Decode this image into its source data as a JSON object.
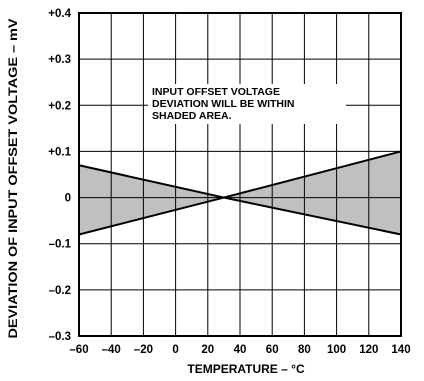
{
  "chart_data": {
    "type": "line",
    "title": "",
    "xlabel": "TEMPERATURE – °C",
    "ylabel": "DEVIATION OF INPUT OFFSET VOLTAGE – mV",
    "xlim": [
      -60,
      140
    ],
    "ylim": [
      -0.3,
      0.4
    ],
    "x_ticks": [
      -60,
      -40,
      -20,
      0,
      20,
      40,
      60,
      80,
      100,
      120,
      140
    ],
    "y_ticks": [
      0.4,
      0.3,
      0.2,
      0.1,
      0,
      -0.1,
      -0.2,
      -0.3
    ],
    "x_tick_labels": [
      "–60",
      "–40",
      "–20",
      "0",
      "20",
      "40",
      "60",
      "80",
      "100",
      "120",
      "140"
    ],
    "y_tick_labels": [
      "+0.4",
      "+0.3",
      "+0.2",
      "+0.1",
      "0",
      "–0.1",
      "–0.2",
      "–0.3"
    ],
    "grid": true,
    "series": [
      {
        "x": [
          -60,
          30,
          140
        ],
        "values": [
          0.07,
          0,
          -0.08
        ]
      },
      {
        "x": [
          -60,
          30,
          140
        ],
        "values": [
          -0.08,
          0,
          0.1
        ]
      }
    ],
    "shaded_region": true,
    "shade_color": "#c0c0c0",
    "annotation": [
      "INPUT OFFSET VOLTAGE",
      "DEVIATION WILL BE WITHIN",
      "SHADED AREA."
    ]
  }
}
